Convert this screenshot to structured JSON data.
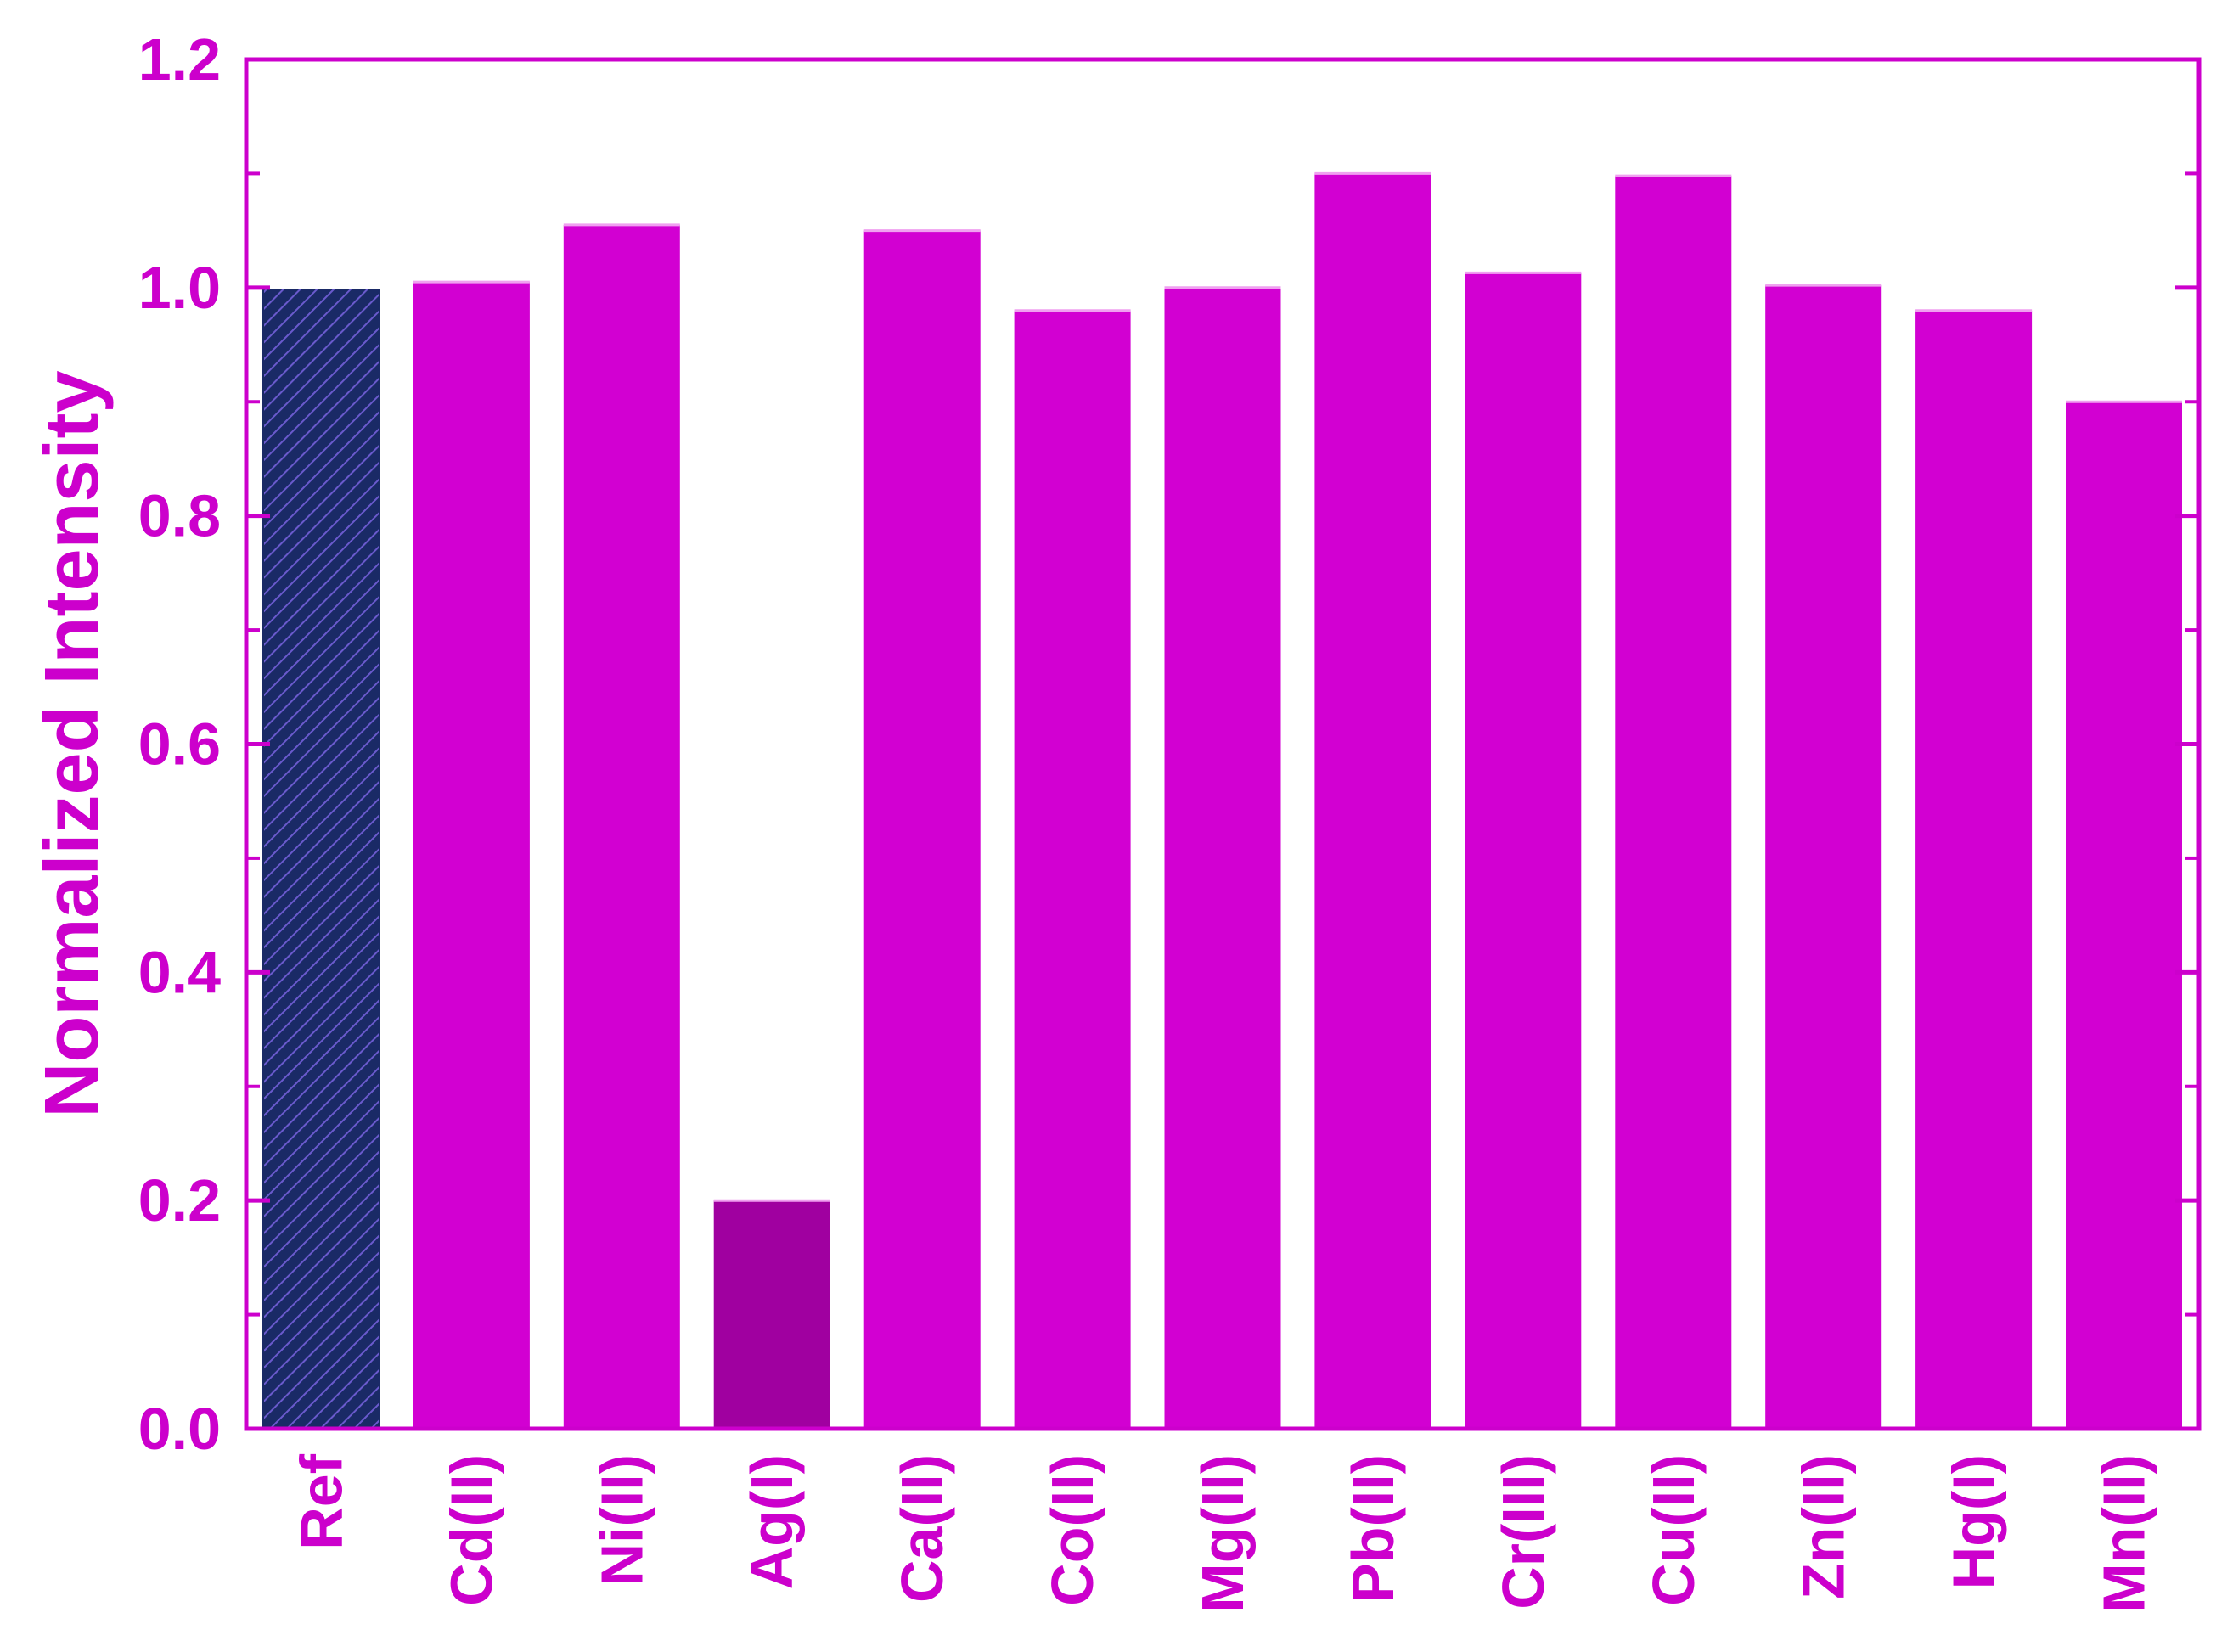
{
  "chart_data": {
    "type": "bar",
    "title": "",
    "xlabel": "",
    "ylabel": "Normalized Intensity",
    "ylim": [
      0.0,
      1.2
    ],
    "yticks": [
      "0.0",
      "0.2",
      "0.4",
      "0.6",
      "0.8",
      "1.0",
      "1.2"
    ],
    "categories": [
      "Ref",
      "Cd(II)",
      "Ni(II)",
      "Ag(I)",
      "Ca(II)",
      "Co(II)",
      "Mg(II)",
      "Pb(II)",
      "Cr(III)",
      "Cu(II)",
      "Zn(II)",
      "Hg(I)",
      "Mn(II)"
    ],
    "values": [
      1.0,
      1.005,
      1.055,
      0.2,
      1.05,
      0.98,
      1.0,
      1.1,
      1.013,
      1.098,
      1.002,
      0.98,
      0.9
    ],
    "grid": false,
    "colors": {
      "axis": "#cc00cc",
      "bar": "#d200d2",
      "highlight_bar": "#a000a0",
      "reference_bar": "#1a2a66",
      "reference_hatch": "#6a5acd"
    },
    "bar_styles": [
      "reference-hatched",
      "normal",
      "normal",
      "highlight",
      "normal",
      "normal",
      "normal",
      "normal",
      "normal",
      "normal",
      "normal",
      "normal",
      "normal"
    ]
  }
}
